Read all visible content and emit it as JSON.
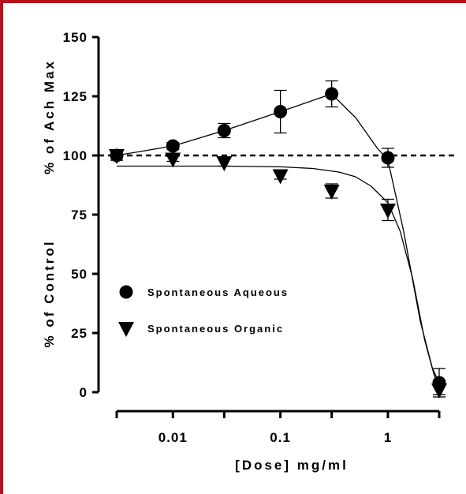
{
  "chart_data": {
    "type": "scatter",
    "x_scale": "log",
    "x_tick_labels": [
      {
        "value": 0.01,
        "label": "0.01"
      },
      {
        "value": 0.1,
        "label": "0.1"
      },
      {
        "value": 1,
        "label": "1"
      }
    ],
    "x_minor_ticks": [
      0.003,
      0.03,
      0.3,
      3
    ],
    "xlim": [
      0.003,
      3
    ],
    "y_ticks": [
      0,
      25,
      50,
      75,
      100,
      125,
      150
    ],
    "ylim": [
      0,
      150
    ],
    "xlabel": "[Dose] mg/ml",
    "ylabel_lower": "% of Control",
    "ylabel_upper": "% of Ach Max",
    "reference_line": {
      "y": 100,
      "style": "dashed"
    },
    "legend_position": "center-left",
    "series": [
      {
        "name": "Spontaneous Aqueous",
        "marker": "circle",
        "x": [
          0.003,
          0.01,
          0.03,
          0.1,
          0.3,
          1,
          3
        ],
        "y": [
          100,
          104,
          110.5,
          118.5,
          126,
          99,
          4
        ],
        "error": [
          2,
          1.5,
          3,
          9,
          5.5,
          4,
          6
        ],
        "fit": "connected",
        "fit_x": [
          0.003,
          0.01,
          0.03,
          0.1,
          0.3,
          0.5,
          0.8,
          1,
          1.4,
          2,
          2.6,
          3
        ],
        "fit_y": [
          100,
          104,
          110.5,
          118.5,
          126,
          116,
          103,
          98,
          68,
          30,
          10,
          4
        ]
      },
      {
        "name": "Spontaneous Organic",
        "marker": "triangle-down",
        "x": [
          0.003,
          0.01,
          0.03,
          0.1,
          0.3,
          1,
          3
        ],
        "y": [
          100,
          98.5,
          97,
          91.5,
          85,
          77,
          1
        ],
        "error": [
          2,
          1,
          1.5,
          1.5,
          3,
          4.5,
          2
        ],
        "fit": "sigmoid",
        "fit_x": [
          0.003,
          0.01,
          0.03,
          0.1,
          0.2,
          0.35,
          0.5,
          0.7,
          1,
          1.3,
          1.7,
          2.2,
          2.7,
          3
        ],
        "fit_y": [
          95.5,
          95.5,
          95.5,
          95.2,
          94.5,
          93,
          91,
          87,
          80,
          68,
          48,
          22,
          7,
          3
        ]
      }
    ]
  }
}
